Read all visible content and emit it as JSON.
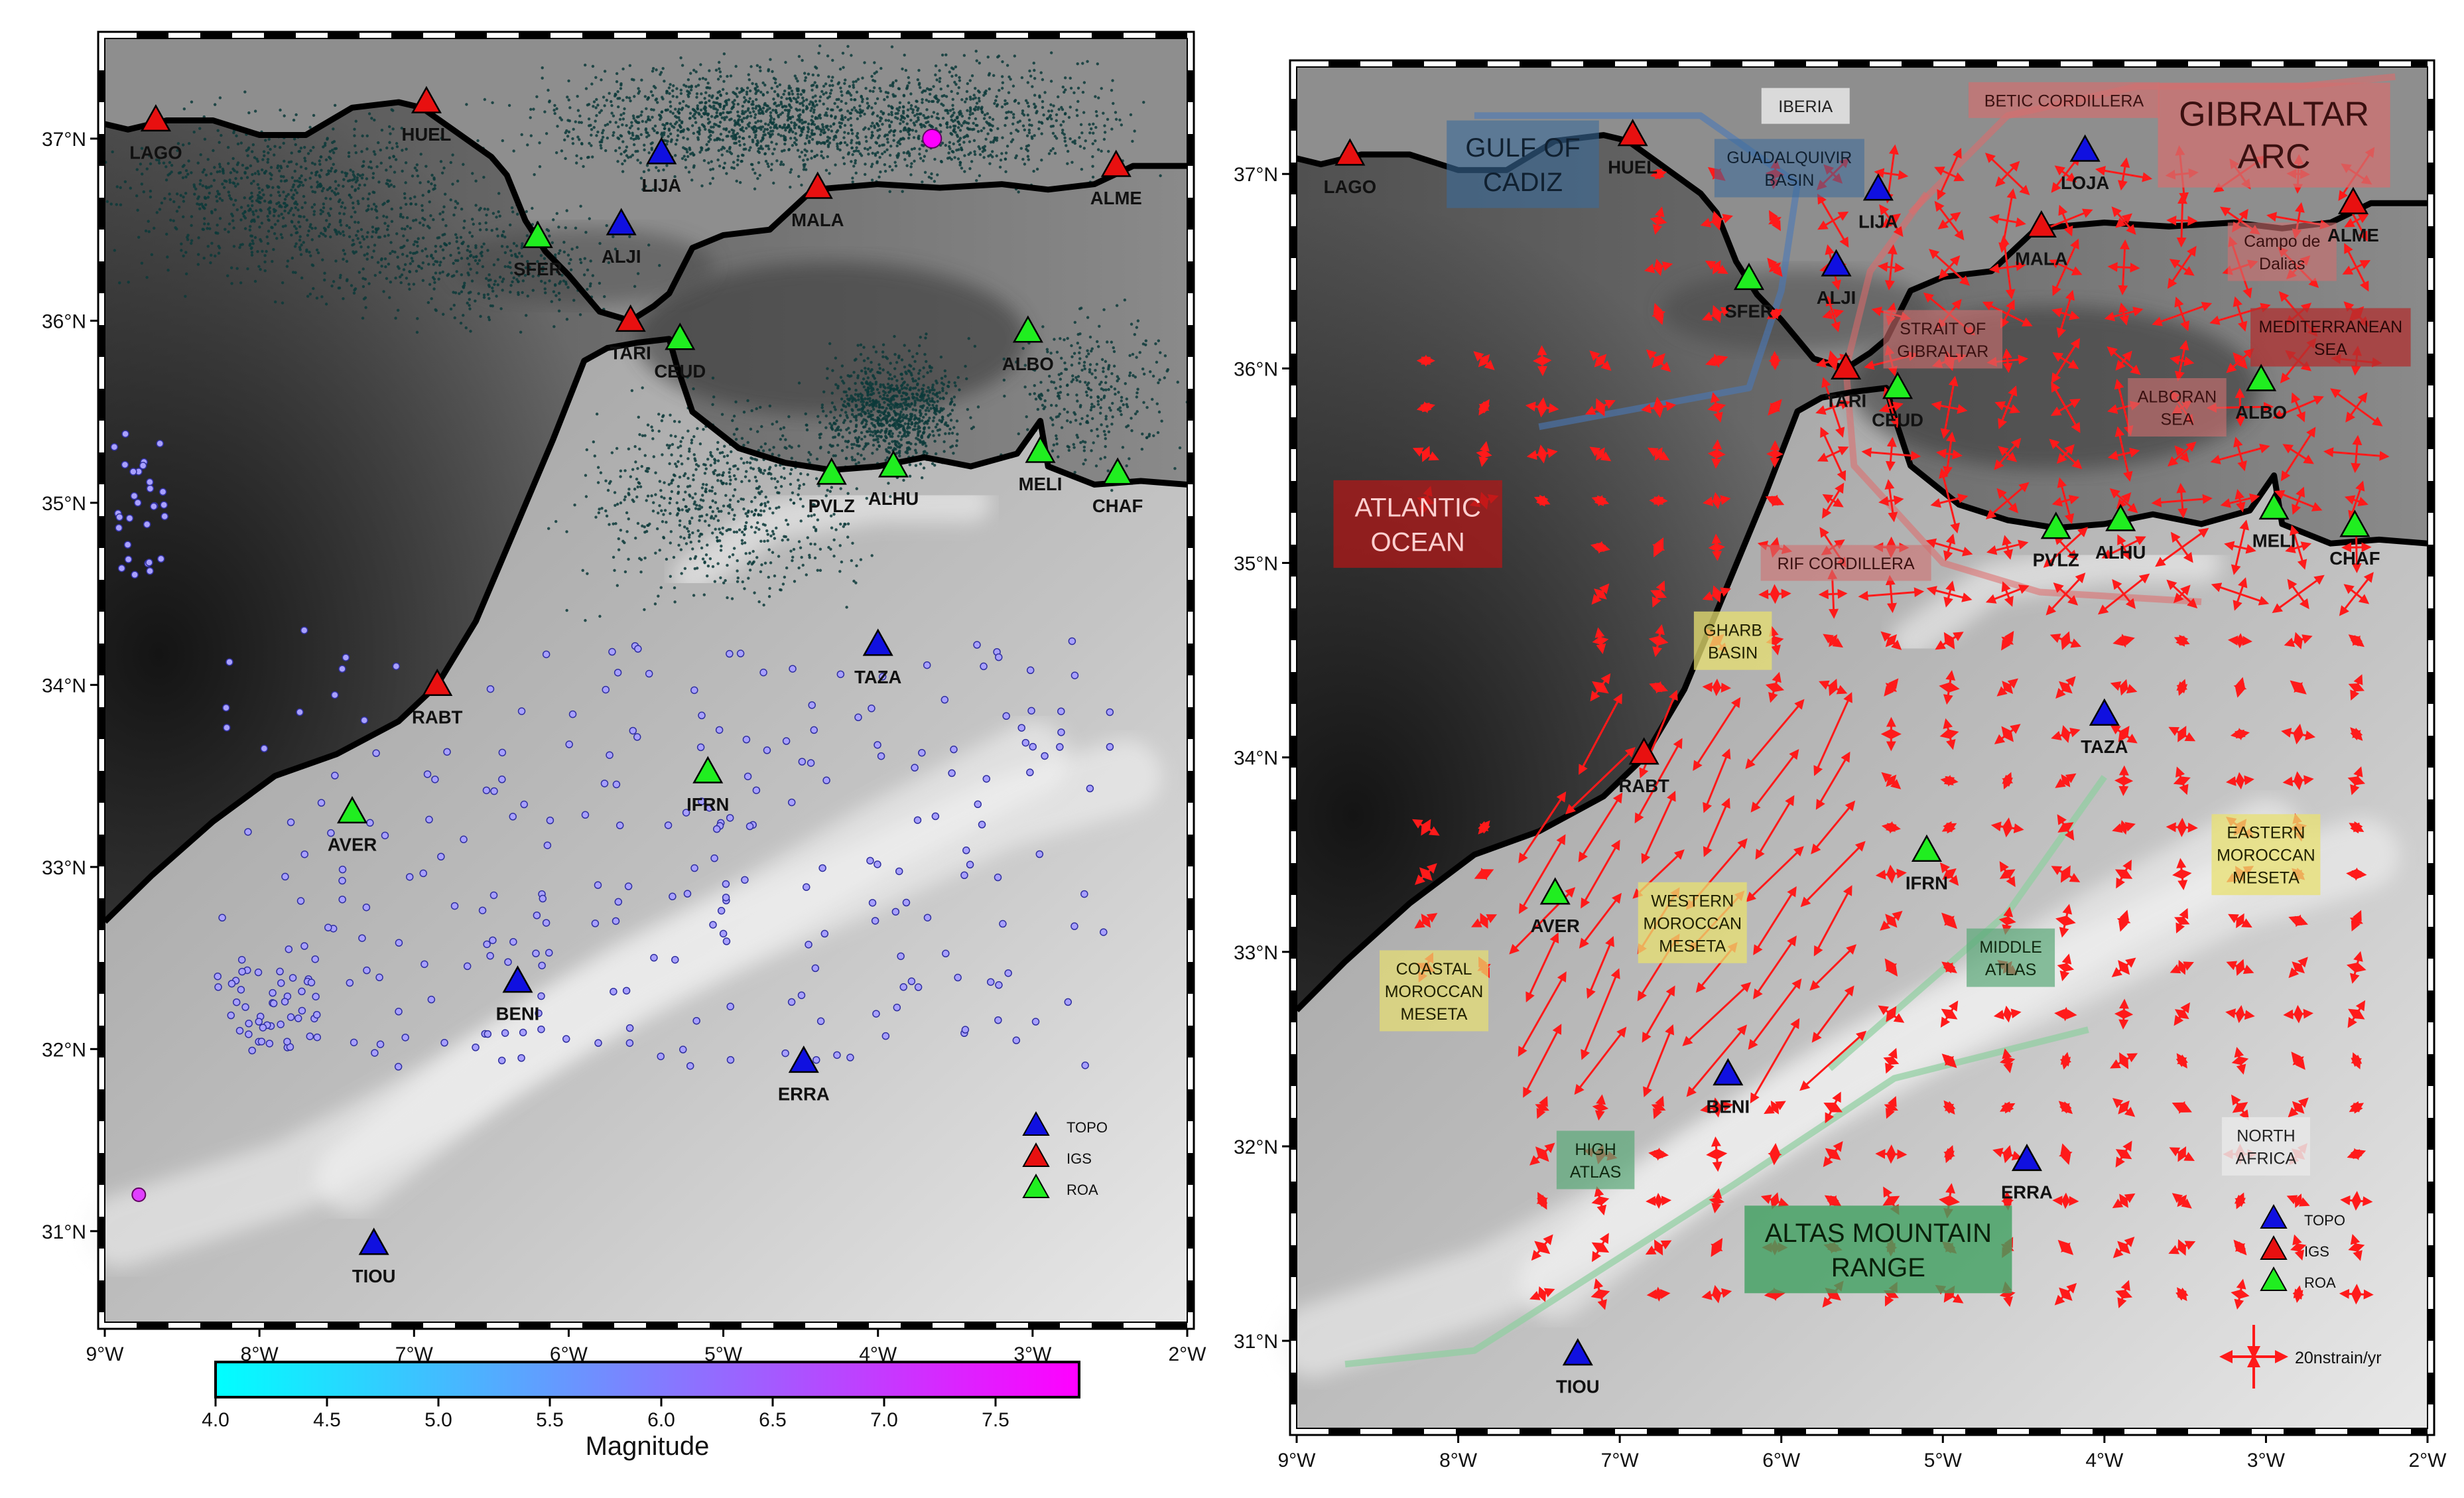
{
  "left_map": {
    "lon_ticks": [
      "9°W",
      "8°W",
      "7°W",
      "6°W",
      "5°W",
      "4°W",
      "3°W",
      "2°W"
    ],
    "lat_ticks": [
      "37°N",
      "36°N",
      "35°N",
      "34°N",
      "33°N",
      "32°N",
      "31°N"
    ],
    "stations": [
      {
        "name": "LAGO",
        "type": "IGS",
        "lon": -8.67,
        "lat": 37.1
      },
      {
        "name": "HUEL",
        "type": "IGS",
        "lon": -6.92,
        "lat": 37.2
      },
      {
        "name": "LIJA",
        "type": "TOPO",
        "lon": -5.4,
        "lat": 36.92
      },
      {
        "name": "MALA",
        "type": "IGS",
        "lon": -4.39,
        "lat": 36.73
      },
      {
        "name": "ALME",
        "type": "IGS",
        "lon": -2.46,
        "lat": 36.85
      },
      {
        "name": "ALJI",
        "type": "TOPO",
        "lon": -5.66,
        "lat": 36.53
      },
      {
        "name": "SFER",
        "type": "ROA",
        "lon": -6.2,
        "lat": 36.46
      },
      {
        "name": "TARI",
        "type": "IGS",
        "lon": -5.6,
        "lat": 36.0
      },
      {
        "name": "CEUD",
        "type": "ROA",
        "lon": -5.28,
        "lat": 35.9
      },
      {
        "name": "ALBO",
        "type": "ROA",
        "lon": -3.03,
        "lat": 35.94
      },
      {
        "name": "MELI",
        "type": "ROA",
        "lon": -2.95,
        "lat": 35.28
      },
      {
        "name": "CHAF",
        "type": "ROA",
        "lon": -2.45,
        "lat": 35.16
      },
      {
        "name": "PVLZ",
        "type": "ROA",
        "lon": -4.3,
        "lat": 35.16
      },
      {
        "name": "ALHU",
        "type": "ROA",
        "lon": -3.9,
        "lat": 35.2
      },
      {
        "name": "TAZA",
        "type": "TOPO",
        "lon": -4.0,
        "lat": 34.22
      },
      {
        "name": "RABT",
        "type": "IGS",
        "lon": -6.85,
        "lat": 34.0
      },
      {
        "name": "IFRN",
        "type": "ROA",
        "lon": -5.1,
        "lat": 33.52
      },
      {
        "name": "AVER",
        "type": "ROA",
        "lon": -7.4,
        "lat": 33.3
      },
      {
        "name": "BENI",
        "type": "TOPO",
        "lon": -6.33,
        "lat": 32.37
      },
      {
        "name": "ERRA",
        "type": "TOPO",
        "lon": -4.48,
        "lat": 31.93
      },
      {
        "name": "TIOU",
        "type": "TOPO",
        "lon": -7.26,
        "lat": 30.93
      }
    ],
    "legend": [
      {
        "label": "TOPO",
        "color": "#1010e0"
      },
      {
        "label": "IGS",
        "color": "#e81010"
      },
      {
        "label": "ROA",
        "color": "#20ee20"
      }
    ],
    "colorbar": {
      "label": "Magnitude",
      "ticks": [
        "4.0",
        "4.5",
        "5.0",
        "5.5",
        "6.0",
        "6.5",
        "7.0",
        "7.5"
      ],
      "color_low": "#00ffff",
      "color_high": "#ff00ff"
    }
  },
  "right_map": {
    "lon_ticks": [
      "9°W",
      "8°W",
      "7°W",
      "6°W",
      "5°W",
      "4°W",
      "3°W",
      "2°W"
    ],
    "lat_ticks": [
      "37°N",
      "36°N",
      "35°N",
      "34°N",
      "33°N",
      "32°N",
      "31°N"
    ],
    "stations": [
      {
        "name": "LAGO",
        "type": "IGS",
        "lon": -8.67,
        "lat": 37.1
      },
      {
        "name": "HUEL",
        "type": "IGS",
        "lon": -6.92,
        "lat": 37.2
      },
      {
        "name": "LIJA",
        "type": "TOPO",
        "lon": -5.4,
        "lat": 36.92
      },
      {
        "name": "LOJA",
        "type": "TOPO",
        "lon": -4.12,
        "lat": 37.12
      },
      {
        "name": "MALA",
        "type": "IGS",
        "lon": -4.39,
        "lat": 36.73
      },
      {
        "name": "ALME",
        "type": "IGS",
        "lon": -2.46,
        "lat": 36.85
      },
      {
        "name": "ALJI",
        "type": "TOPO",
        "lon": -5.66,
        "lat": 36.53
      },
      {
        "name": "SFER",
        "type": "ROA",
        "lon": -6.2,
        "lat": 36.46
      },
      {
        "name": "TARI",
        "type": "IGS",
        "lon": -5.6,
        "lat": 36.0
      },
      {
        "name": "CEUD",
        "type": "ROA",
        "lon": -5.28,
        "lat": 35.9
      },
      {
        "name": "ALBO",
        "type": "ROA",
        "lon": -3.03,
        "lat": 35.94
      },
      {
        "name": "MELI",
        "type": "ROA",
        "lon": -2.95,
        "lat": 35.28
      },
      {
        "name": "CHAF",
        "type": "ROA",
        "lon": -2.45,
        "lat": 35.19
      },
      {
        "name": "PVLZ",
        "type": "ROA",
        "lon": -4.3,
        "lat": 35.18
      },
      {
        "name": "ALHU",
        "type": "ROA",
        "lon": -3.9,
        "lat": 35.22
      },
      {
        "name": "TAZA",
        "type": "TOPO",
        "lon": -4.0,
        "lat": 34.22
      },
      {
        "name": "RABT",
        "type": "IGS",
        "lon": -6.85,
        "lat": 34.02
      },
      {
        "name": "IFRN",
        "type": "ROA",
        "lon": -5.1,
        "lat": 33.52
      },
      {
        "name": "AVER",
        "type": "ROA",
        "lon": -7.4,
        "lat": 33.3
      },
      {
        "name": "BENI",
        "type": "TOPO",
        "lon": -6.33,
        "lat": 32.37
      },
      {
        "name": "ERRA",
        "type": "TOPO",
        "lon": -4.48,
        "lat": 31.93
      },
      {
        "name": "TIOU",
        "type": "TOPO",
        "lon": -7.26,
        "lat": 30.93
      }
    ],
    "region_labels": [
      {
        "lines": [
          "GULF OF",
          "CADIZ"
        ],
        "lon": -7.6,
        "lat": 37.05,
        "bg": "#3a6a9a",
        "fg": "#102030",
        "alpha": 0.6,
        "size": "l"
      },
      {
        "lines": [
          "IBERIA"
        ],
        "lon": -5.85,
        "lat": 37.35,
        "bg": "#e8e8e8",
        "fg": "#222222",
        "alpha": 0.85,
        "size": "s"
      },
      {
        "lines": [
          "GUADALQUIVIR",
          "BASIN"
        ],
        "lon": -5.95,
        "lat": 37.03,
        "bg": "#3a6a9a",
        "fg": "#102030",
        "alpha": 0.55,
        "size": "s"
      },
      {
        "lines": [
          "BETIC CORDILLERA"
        ],
        "lon": -4.25,
        "lat": 37.38,
        "bg": "#d07070",
        "fg": "#3a1010",
        "alpha": 0.7,
        "size": "s"
      },
      {
        "lines": [
          "GIBRALTAR",
          "ARC"
        ],
        "lon": -2.95,
        "lat": 37.2,
        "bg": "#d07070",
        "fg": "#3a1010",
        "alpha": 0.75,
        "size": "xl"
      },
      {
        "lines": [
          "Campo de",
          "Dalias"
        ],
        "lon": -2.9,
        "lat": 36.6,
        "bg": "#d07070",
        "fg": "#3a1010",
        "alpha": 0.6,
        "size": "s"
      },
      {
        "lines": [
          "STRAIT OF",
          "GIBRALTAR"
        ],
        "lon": -5.0,
        "lat": 36.15,
        "bg": "#d07070",
        "fg": "#3a1010",
        "alpha": 0.6,
        "size": "s"
      },
      {
        "lines": [
          "MEDITERRANEAN",
          "SEA"
        ],
        "lon": -2.6,
        "lat": 36.16,
        "bg": "#b03030",
        "fg": "#2a0808",
        "alpha": 0.75,
        "size": "s"
      },
      {
        "lines": [
          "ALBORAN",
          "SEA"
        ],
        "lon": -3.55,
        "lat": 35.8,
        "bg": "#d07070",
        "fg": "#3a1010",
        "alpha": 0.6,
        "size": "s"
      },
      {
        "lines": [
          "ATLANTIC",
          "OCEAN"
        ],
        "lon": -8.25,
        "lat": 35.2,
        "bg": "#b01818",
        "fg": "#ffd0d0",
        "alpha": 0.75,
        "size": "l"
      },
      {
        "lines": [
          "RIF CORDILLERA"
        ],
        "lon": -5.6,
        "lat": 35.0,
        "bg": "#d07070",
        "fg": "#3a1010",
        "alpha": 0.6,
        "size": "s"
      },
      {
        "lines": [
          "GHARB",
          "BASIN"
        ],
        "lon": -6.3,
        "lat": 34.6,
        "bg": "#e8e070",
        "fg": "#202000",
        "alpha": 0.75,
        "size": "s"
      },
      {
        "lines": [
          "EASTERN",
          "MOROCCAN",
          "MESETA"
        ],
        "lon": -3.0,
        "lat": 33.5,
        "bg": "#e8e070",
        "fg": "#202000",
        "alpha": 0.75,
        "size": "s"
      },
      {
        "lines": [
          "WESTERN",
          "MOROCCAN",
          "MESETA"
        ],
        "lon": -6.55,
        "lat": 33.15,
        "bg": "#e8e070",
        "fg": "#202000",
        "alpha": 0.75,
        "size": "s"
      },
      {
        "lines": [
          "COASTAL",
          "MOROCCAN",
          "MESETA"
        ],
        "lon": -8.15,
        "lat": 32.8,
        "bg": "#e8e070",
        "fg": "#202000",
        "alpha": 0.7,
        "size": "s"
      },
      {
        "lines": [
          "MIDDLE",
          "ATLAS"
        ],
        "lon": -4.58,
        "lat": 32.97,
        "bg": "#5aa878",
        "fg": "#102810",
        "alpha": 0.7,
        "size": "s"
      },
      {
        "lines": [
          "NORTH",
          "AFRICA"
        ],
        "lon": -3.0,
        "lat": 32.0,
        "bg": "#e8e8e8",
        "fg": "#222222",
        "alpha": 0.85,
        "size": "s"
      },
      {
        "lines": [
          "HIGH",
          "ATLAS"
        ],
        "lon": -7.15,
        "lat": 31.93,
        "bg": "#5aa878",
        "fg": "#102810",
        "alpha": 0.7,
        "size": "s"
      },
      {
        "lines": [
          "ALTAS MOUNTAIN",
          "RANGE"
        ],
        "lon": -5.4,
        "lat": 31.47,
        "bg": "#40a060",
        "fg": "#0a200a",
        "alpha": 0.8,
        "size": "l"
      }
    ],
    "legend": [
      {
        "label": "TOPO",
        "color": "#1010e0"
      },
      {
        "label": "IGS",
        "color": "#e81010"
      },
      {
        "label": "ROA",
        "color": "#20ee20"
      }
    ],
    "scale_label": "20nstrain/yr"
  }
}
